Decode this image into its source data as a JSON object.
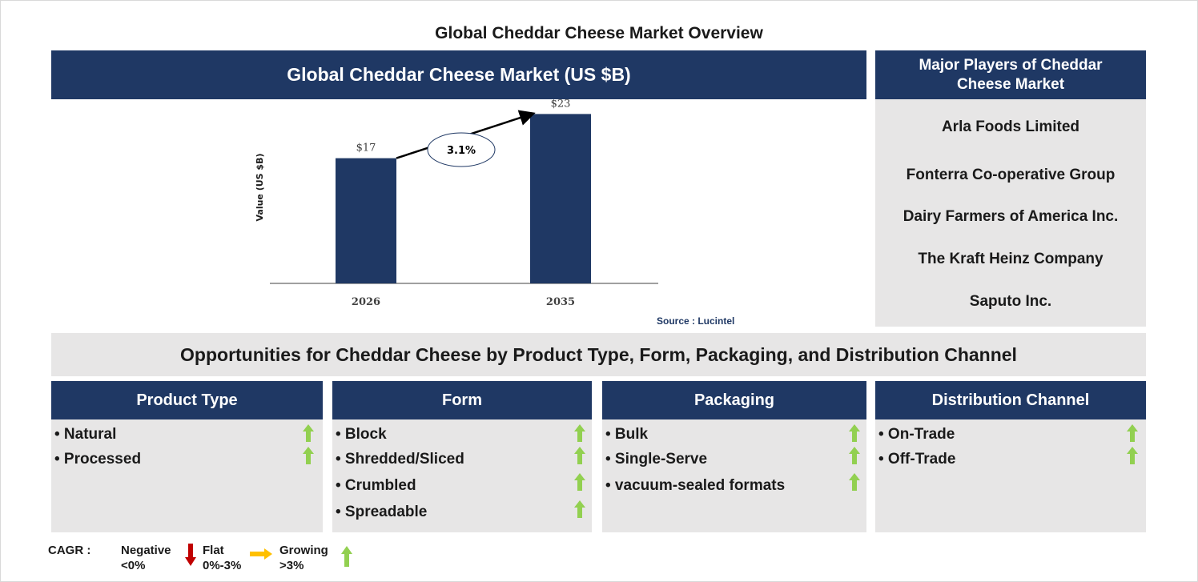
{
  "title": "Global Cheddar Cheese Market Overview",
  "chart_header": "Global Cheddar Cheese Market (US $B)",
  "chart_data": {
    "type": "bar",
    "categories": [
      "2026",
      "2035"
    ],
    "values": [
      17,
      23
    ],
    "data_labels": [
      "$17",
      "$23"
    ],
    "ylabel": "Value (US $B)",
    "ylim": [
      0,
      25
    ],
    "cagr_label": "3.1%",
    "grid": false,
    "bar_color": "#1f3864"
  },
  "source": "Source : Lucintel",
  "players": {
    "header": "Major Players of Cheddar Cheese Market",
    "items": [
      "Arla Foods Limited",
      "Fonterra Co-operative Group",
      "Dairy Farmers of America Inc.",
      "The Kraft Heinz Company",
      "Saputo Inc."
    ]
  },
  "opportunities_title": "Opportunities for Cheddar Cheese by Product Type, Form, Packaging, and Distribution Channel",
  "segments": [
    {
      "title": "Product Type",
      "items": [
        "• Natural",
        "• Processed"
      ],
      "trend": [
        "growing",
        "growing"
      ]
    },
    {
      "title": "Form",
      "items": [
        "• Block",
        "• Shredded/Sliced",
        "• Crumbled",
        "• Spreadable"
      ],
      "trend": [
        "growing",
        "growing",
        "growing",
        "growing"
      ]
    },
    {
      "title": "Packaging",
      "items": [
        "• Bulk",
        "• Single-Serve",
        "• vacuum-sealed formats"
      ],
      "trend": [
        "growing",
        "growing",
        "growing"
      ]
    },
    {
      "title": "Distribution Channel",
      "items": [
        "• On-Trade",
        "• Off-Trade"
      ],
      "trend": [
        "growing",
        "growing"
      ]
    }
  ],
  "legend": {
    "label": "CAGR :",
    "negative": {
      "name": "Negative",
      "range": "<0%",
      "icon": "down-arrow-icon",
      "color": "#c00000"
    },
    "flat": {
      "name": "Flat",
      "range": "0%-3%",
      "icon": "right-arrow-icon",
      "color": "#ffc000"
    },
    "growing": {
      "name": "Growing",
      "range": ">3%",
      "icon": "up-arrow-icon",
      "color": "#92d050"
    }
  },
  "colors": {
    "navy": "#1f3864",
    "grey": "#e7e6e6",
    "growth_green": "#92d050"
  }
}
